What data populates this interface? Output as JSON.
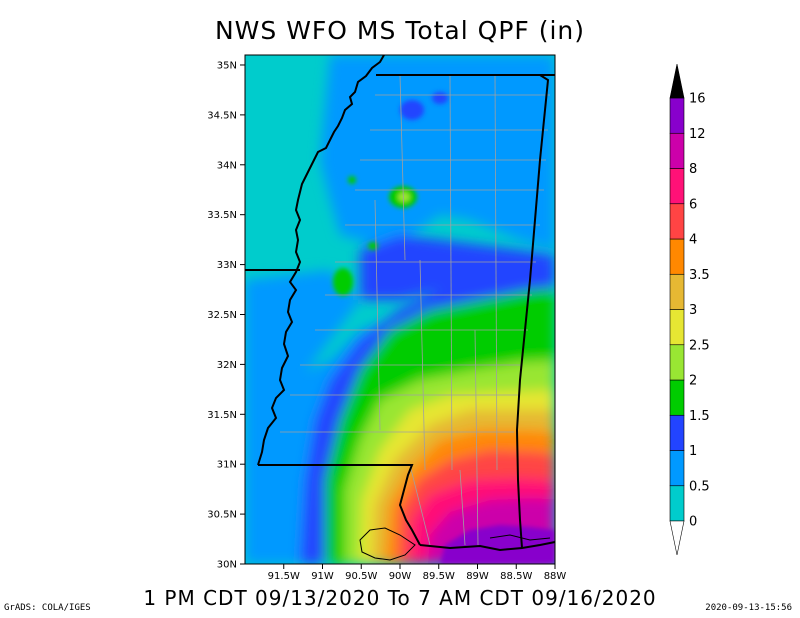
{
  "title": "NWS WFO MS Total QPF (in)",
  "subtitle": "1 PM CDT 09/13/2020 To 7 AM CDT 09/16/2020",
  "credit": "GrADS: COLA/IGES",
  "timestamp": "2020-09-13-15:56",
  "chart_data": {
    "type": "heatmap",
    "title": "NWS WFO MS Total QPF (in)",
    "x_ticks": [
      "91.5W",
      "91W",
      "90.5W",
      "90W",
      "89.5W",
      "89W",
      "88.5W",
      "88W"
    ],
    "x_values": [
      -91.5,
      -91.0,
      -90.5,
      -90.0,
      -89.5,
      -89.0,
      -88.5,
      -88.0
    ],
    "y_ticks": [
      "30N",
      "30.5N",
      "31N",
      "31.5N",
      "32N",
      "32.5N",
      "33N",
      "33.5N",
      "34N",
      "34.5N",
      "35N"
    ],
    "y_values": [
      30.0,
      30.5,
      31.0,
      31.5,
      32.0,
      32.5,
      33.0,
      33.5,
      34.0,
      34.5,
      35.0
    ],
    "xlim": [
      -92.0,
      -88.0
    ],
    "ylim": [
      30.0,
      35.1
    ],
    "colorbar": {
      "levels": [
        "0",
        "0.5",
        "1",
        "1.5",
        "2",
        "2.5",
        "3",
        "3.5",
        "4",
        "6",
        "8",
        "12",
        "16"
      ],
      "colors": [
        "#00cccc",
        "#0099ff",
        "#2244ff",
        "#00cc00",
        "#99e633",
        "#e6e633",
        "#e6b833",
        "#ff8800",
        "#ff4444",
        "#ff1177",
        "#cc00aa",
        "#8800cc"
      ],
      "under_color": "#ffffff",
      "over_color": "#000000"
    }
  }
}
